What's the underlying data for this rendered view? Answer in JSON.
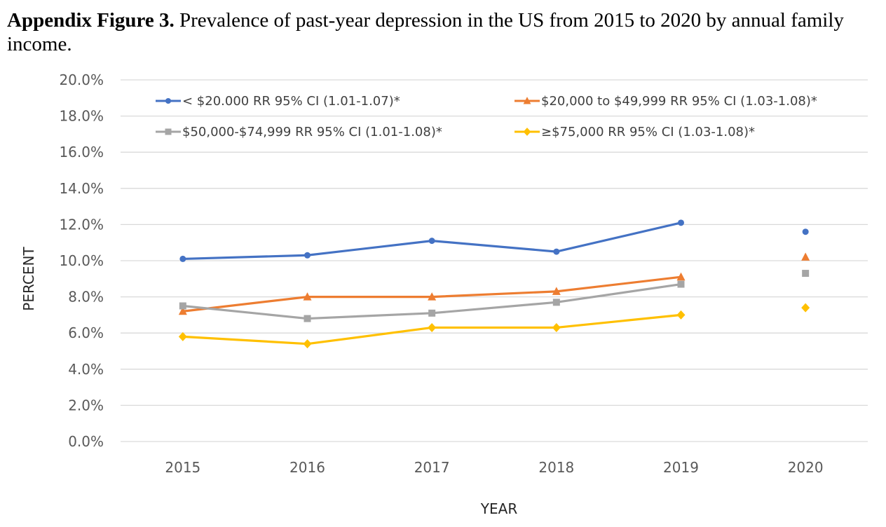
{
  "caption": {
    "lead": "Appendix Figure 3.",
    "text": " Prevalence of past-year depression in the US from 2015 to 2020 by annual family income."
  },
  "chart_data": {
    "type": "line",
    "title": "Appendix Figure 3. Prevalence of past-year depression in the US from 2015 to 2020 by annual family income.",
    "xlabel": "YEAR",
    "ylabel": "PERCENT",
    "categories": [
      "2015",
      "2016",
      "2017",
      "2018",
      "2019",
      "2020"
    ],
    "ylim": [
      0,
      20
    ],
    "yticks": [
      "0.0%",
      "2.0%",
      "4.0%",
      "6.0%",
      "8.0%",
      "10.0%",
      "12.0%",
      "14.0%",
      "16.0%",
      "18.0%",
      "20.0%"
    ],
    "grid": true,
    "legend_position": "top",
    "series": [
      {
        "name": "< $20.000 RR 95% CI (1.01-1.07)*",
        "color": "#4472C4",
        "marker": "circle",
        "values": [
          10.1,
          10.3,
          11.1,
          10.5,
          12.1,
          11.6
        ]
      },
      {
        "name": "$20,000 to $49,999 RR 95% CI (1.03-1.08)*",
        "color": "#ED7D31",
        "marker": "triangle",
        "values": [
          7.2,
          8.0,
          8.0,
          8.3,
          9.1,
          10.2
        ]
      },
      {
        "name": "$50,000-$74,999 RR 95% CI (1.01-1.08)*",
        "color": "#A5A5A5",
        "marker": "square",
        "values": [
          7.5,
          6.8,
          7.1,
          7.7,
          8.7,
          9.3
        ]
      },
      {
        "name": "≥$75,000 RR 95% CI (1.03-1.08)*",
        "color": "#FFC000",
        "marker": "diamond",
        "values": [
          5.8,
          5.4,
          6.3,
          6.3,
          7.0,
          7.4
        ]
      }
    ]
  }
}
